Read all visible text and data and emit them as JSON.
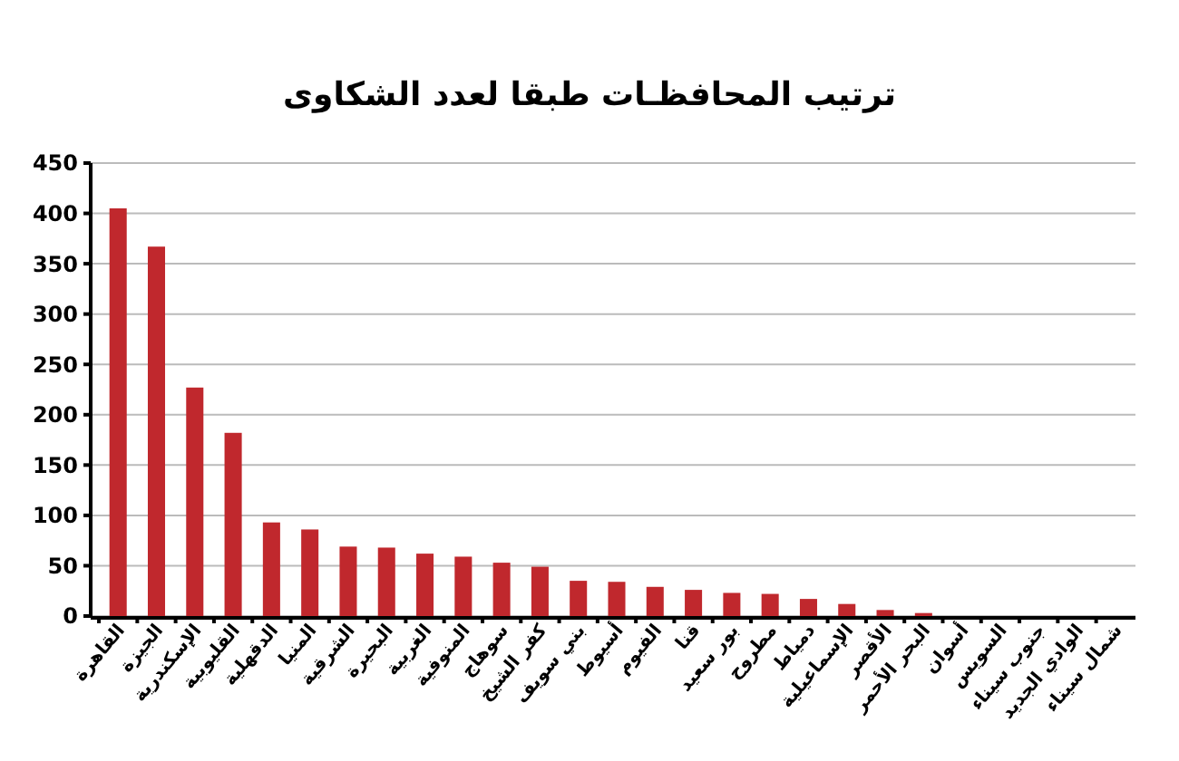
{
  "chart_data": {
    "type": "bar",
    "title": "ترتيب المحافظـات طبقا لعدد الشكاوى",
    "categories": [
      "القاهرة",
      "الجيزة",
      "الإسكندرية",
      "القليوبية",
      "الدقهلية",
      "المنيا",
      "الشرقية",
      "البحيرة",
      "الغربية",
      "المنوفية",
      "سوهاج",
      "كفر الشيخ",
      "بني سويف",
      "أسيوط",
      "الفيوم",
      "قنا",
      "بور سعيد",
      "مطروح",
      "دمياط",
      "الإسماعيلية",
      "الأقصر",
      "البحر الأحمر",
      "أسوان",
      "السويس",
      "جنوب سيناء",
      "الوادي الجديد",
      "شمال سيناء"
    ],
    "values": [
      405,
      367,
      227,
      182,
      93,
      86,
      69,
      68,
      62,
      59,
      53,
      49,
      35,
      34,
      29,
      26,
      23,
      22,
      17,
      12,
      6,
      3,
      0,
      0,
      0,
      0,
      0
    ],
    "color": "#c0282d",
    "ylim": [
      0,
      450
    ],
    "yticks": [
      0,
      50,
      100,
      150,
      200,
      250,
      300,
      350,
      400,
      450
    ],
    "grid": "y"
  }
}
